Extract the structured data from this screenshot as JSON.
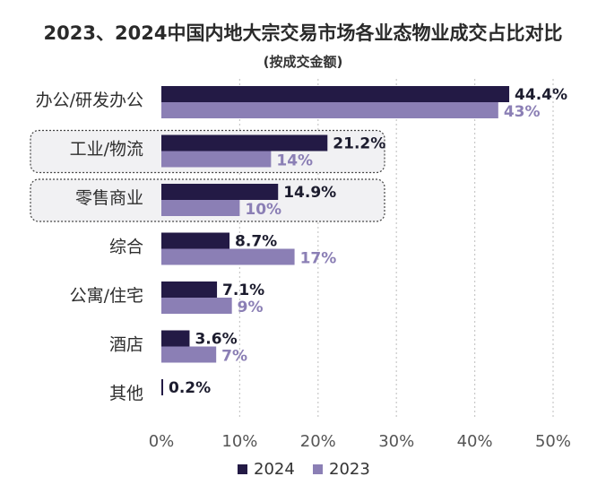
{
  "colors": {
    "series_2024": "#231a45",
    "series_2023": "#8b7fb5",
    "label_2024": "#1c1c2e",
    "label_2023": "#8b7fb5",
    "grid": "#c8c8c8",
    "highlight_border": "#444444",
    "highlight_fill": "#f1f1f3"
  },
  "chart_data": {
    "type": "bar",
    "orientation": "horizontal",
    "title": "2023、2024中国内地大宗交易市场各业态物业成交占比对比",
    "subtitle": "(按成交金额)",
    "categories": [
      "办公/研发办公",
      "工业/物流",
      "零售商业",
      "综合",
      "公寓/住宅",
      "酒店",
      "其他"
    ],
    "series": [
      {
        "name": "2024",
        "values": [
          44.4,
          21.2,
          14.9,
          8.7,
          7.1,
          3.6,
          0.2
        ],
        "labels": [
          "44.4%",
          "21.2%",
          "14.9%",
          "8.7%",
          "7.1%",
          "3.6%",
          "0.2%"
        ]
      },
      {
        "name": "2023",
        "values": [
          43,
          14,
          10,
          17,
          9,
          7,
          null
        ],
        "labels": [
          "43%",
          "14%",
          "10%",
          "17%",
          "9%",
          "7%",
          ""
        ]
      }
    ],
    "xlim": [
      0,
      50
    ],
    "x_ticks": [
      0,
      10,
      20,
      30,
      40,
      50
    ],
    "x_tick_labels": [
      "0%",
      "10%",
      "20%",
      "30%",
      "40%",
      "50%"
    ],
    "highlighted_categories": [
      "工业/物流",
      "零售商业"
    ],
    "grid": "vertical dotted",
    "legend": {
      "placement": "bottom-center",
      "entries": [
        "2024",
        "2023"
      ]
    }
  }
}
